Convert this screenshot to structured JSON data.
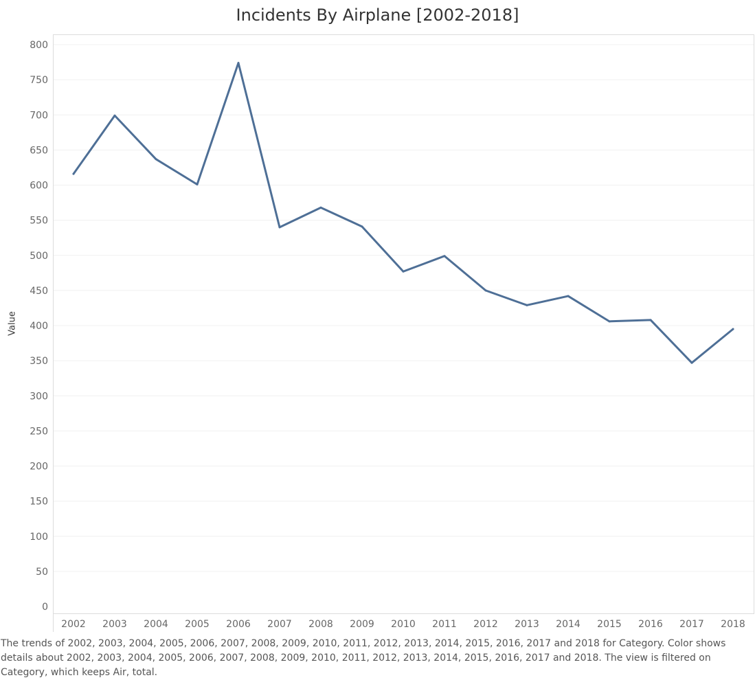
{
  "chart_data": {
    "type": "line",
    "title": "Incidents By Airplane [2002-2018]",
    "xlabel": "",
    "ylabel": "Value",
    "ylim": [
      0,
      800
    ],
    "yticks": [
      0,
      50,
      100,
      150,
      200,
      250,
      300,
      350,
      400,
      450,
      500,
      550,
      600,
      650,
      700,
      750,
      800
    ],
    "grid": true,
    "categories": [
      "2002",
      "2003",
      "2004",
      "2005",
      "2006",
      "2007",
      "2008",
      "2009",
      "2010",
      "2011",
      "2012",
      "2013",
      "2014",
      "2015",
      "2016",
      "2017",
      "2018"
    ],
    "series": [
      {
        "values": [
          616,
          699,
          637,
          601,
          774,
          540,
          568,
          541,
          477,
          499,
          450,
          429,
          442,
          406,
          408,
          347,
          395
        ],
        "color": "#4e6f96"
      }
    ]
  },
  "caption": "The trends of 2002, 2003, 2004, 2005, 2006, 2007, 2008, 2009, 2010, 2011, 2012, 2013, 2014, 2015, 2016, 2017 and 2018 for Category.  Color shows details about 2002, 2003, 2004, 2005, 2006, 2007, 2008, 2009, 2010, 2011, 2012, 2013, 2014, 2015, 2016, 2017 and 2018. The view is filtered on Category, which keeps Air, total."
}
